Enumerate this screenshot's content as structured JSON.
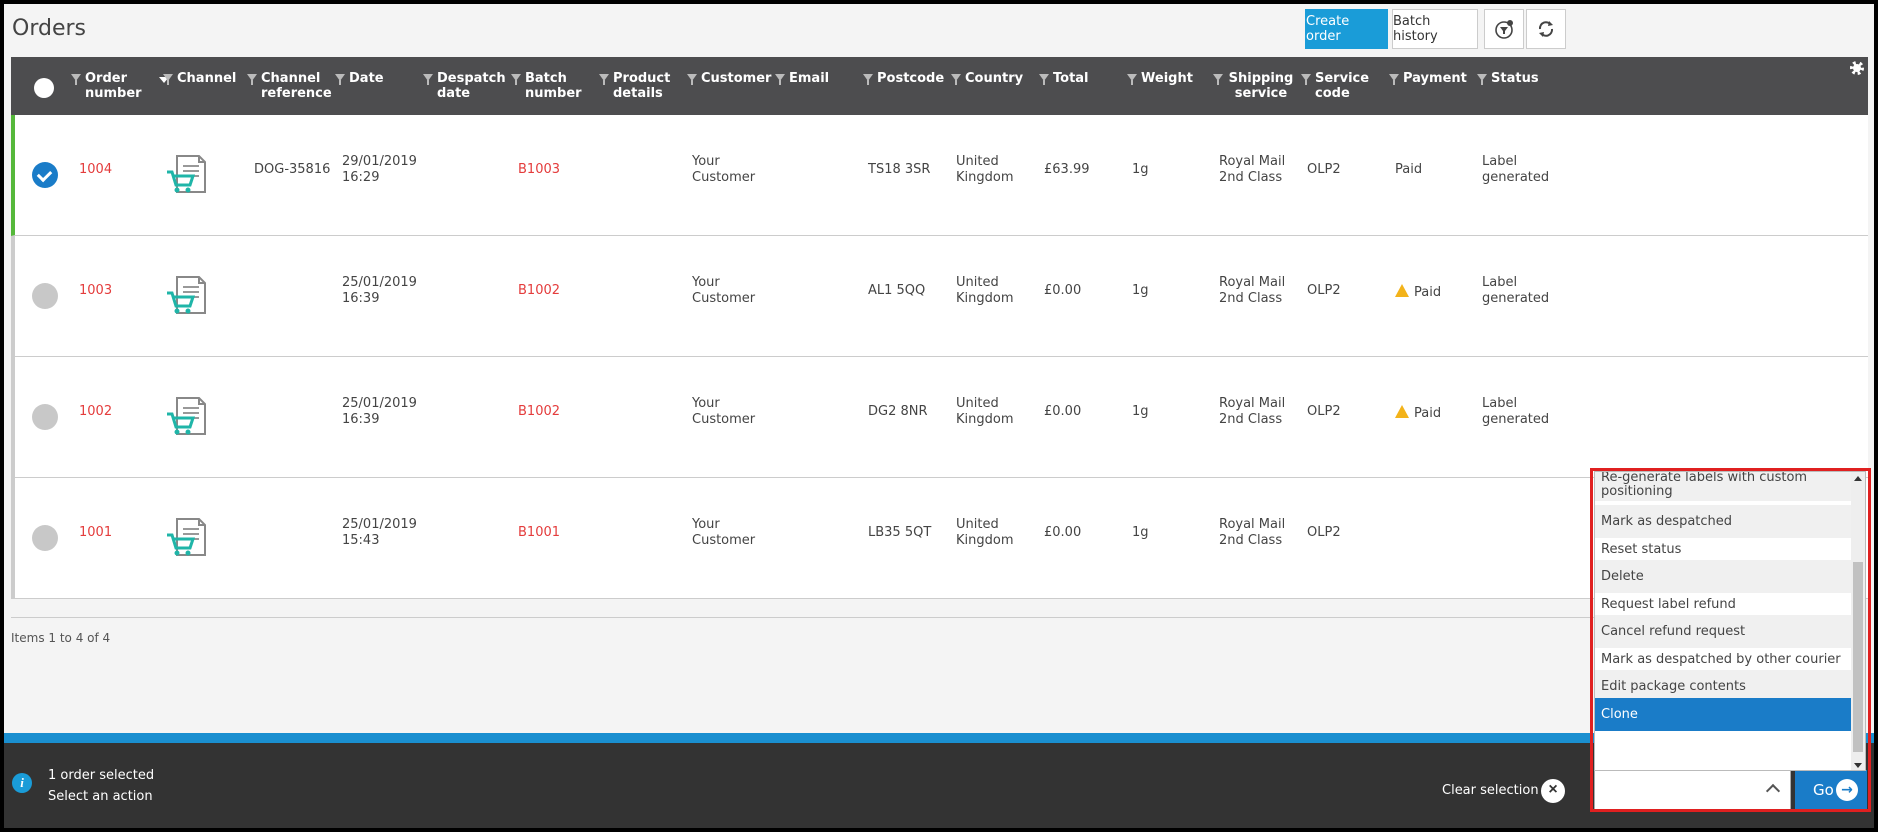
{
  "page": {
    "title": "Orders"
  },
  "toolbar": {
    "create_order": "Create order",
    "batch_history": "Batch history",
    "filter_icon": "filter-settings-icon",
    "refresh_icon": "refresh-icon"
  },
  "columns": [
    {
      "key": "order_number",
      "label": "Order number"
    },
    {
      "key": "channel",
      "label": "Channel"
    },
    {
      "key": "channel_reference",
      "label": "Channel reference"
    },
    {
      "key": "date",
      "label": "Date"
    },
    {
      "key": "despatch_date",
      "label": "Despatch date"
    },
    {
      "key": "batch_number",
      "label": "Batch number"
    },
    {
      "key": "product_details",
      "label": "Product details"
    },
    {
      "key": "customer",
      "label": "Customer"
    },
    {
      "key": "email",
      "label": "Email"
    },
    {
      "key": "postcode",
      "label": "Postcode"
    },
    {
      "key": "country",
      "label": "Country"
    },
    {
      "key": "total",
      "label": "Total"
    },
    {
      "key": "weight",
      "label": "Weight"
    },
    {
      "key": "shipping_service",
      "label": "Shipping service"
    },
    {
      "key": "service_code",
      "label": "Service code"
    },
    {
      "key": "payment",
      "label": "Payment"
    },
    {
      "key": "status",
      "label": "Status"
    }
  ],
  "orders": [
    {
      "selected": true,
      "order_number": "1004",
      "channel_icon": "shopping-cart-document-icon",
      "channel_reference": "DOG-35816",
      "date": "29/01/2019\n16:29",
      "despatch_date": "",
      "batch_number": "B1003",
      "product_details": "",
      "customer": "Your\nCustomer",
      "email": "",
      "postcode": "TS18 3SR",
      "country": "United\nKingdom",
      "total": "£63.99",
      "weight": "1g",
      "shipping_service": "Royal Mail\n2nd Class",
      "service_code": "OLP2",
      "payment": "Paid",
      "payment_warning": false,
      "status": "Label\ngenerated"
    },
    {
      "selected": false,
      "order_number": "1003",
      "channel_icon": "shopping-cart-document-icon",
      "channel_reference": "",
      "date": "25/01/2019\n16:39",
      "despatch_date": "",
      "batch_number": "B1002",
      "product_details": "",
      "customer": "Your\nCustomer",
      "email": "",
      "postcode": "AL1 5QQ",
      "country": "United\nKingdom",
      "total": "£0.00",
      "weight": "1g",
      "shipping_service": "Royal Mail\n2nd Class",
      "service_code": "OLP2",
      "payment": "Paid",
      "payment_warning": true,
      "status": "Label\ngenerated"
    },
    {
      "selected": false,
      "order_number": "1002",
      "channel_icon": "shopping-cart-document-icon",
      "channel_reference": "",
      "date": "25/01/2019\n16:39",
      "despatch_date": "",
      "batch_number": "B1002",
      "product_details": "",
      "customer": "Your\nCustomer",
      "email": "",
      "postcode": "DG2 8NR",
      "country": "United\nKingdom",
      "total": "£0.00",
      "weight": "1g",
      "shipping_service": "Royal Mail\n2nd Class",
      "service_code": "OLP2",
      "payment": "Paid",
      "payment_warning": true,
      "status": "Label\ngenerated"
    },
    {
      "selected": false,
      "order_number": "1001",
      "channel_icon": "shopping-cart-document-icon",
      "channel_reference": "",
      "date": "25/01/2019\n15:43",
      "despatch_date": "",
      "batch_number": "B1001",
      "product_details": "",
      "customer": "Your\nCustomer",
      "email": "",
      "postcode": "LB35 5QT",
      "country": "United\nKingdom",
      "total": "£0.00",
      "weight": "1g",
      "shipping_service": "Royal Mail\n2nd Class",
      "service_code": "OLP2",
      "payment": "",
      "payment_warning": false,
      "status": ""
    }
  ],
  "pager": {
    "items_text": "Items 1 to 4 of 4"
  },
  "footer": {
    "selected_text": "1 order selected",
    "action_prompt": "Select an action",
    "clear_selection": "Clear selection",
    "go": "Go",
    "action_value": ""
  },
  "dropdown": {
    "items": [
      "Re-generate labels with custom positioning",
      "Mark as despatched",
      "Reset status",
      "Delete",
      "Request label refund",
      "Cancel refund request",
      "Mark as despatched by other courier",
      "Edit package contents",
      "Clone"
    ],
    "active": "Clone"
  },
  "colors": {
    "accent": "#1a9cd8",
    "header_bg": "#4d4d4f",
    "link_red": "#e43c3c",
    "selected_row_border": "#55b83a",
    "footer_bg": "#333333",
    "highlight": "#e02020"
  }
}
